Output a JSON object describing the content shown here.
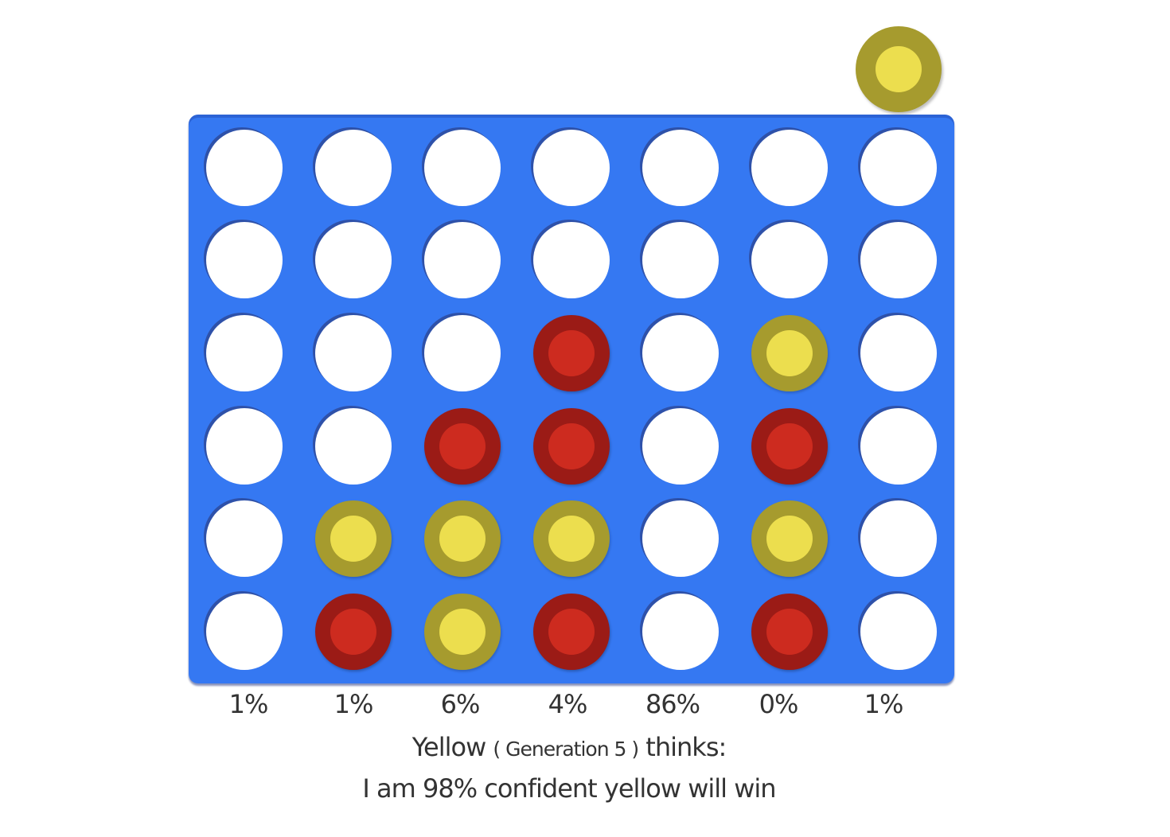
{
  "current_piece": "yellow",
  "board": [
    [
      "empty",
      "empty",
      "empty",
      "empty",
      "empty",
      "empty",
      "empty"
    ],
    [
      "empty",
      "empty",
      "empty",
      "empty",
      "empty",
      "empty",
      "empty"
    ],
    [
      "empty",
      "empty",
      "empty",
      "red",
      "empty",
      "yellow",
      "empty"
    ],
    [
      "empty",
      "empty",
      "red",
      "red",
      "empty",
      "red",
      "empty"
    ],
    [
      "empty",
      "yellow",
      "yellow",
      "yellow",
      "empty",
      "yellow",
      "empty"
    ],
    [
      "empty",
      "red",
      "yellow",
      "red",
      "empty",
      "red",
      "empty"
    ]
  ],
  "column_probabilities": [
    "1%",
    "1%",
    "6%",
    "4%",
    "86%",
    "0%",
    "1%"
  ],
  "status": {
    "player": "Yellow",
    "generation": "( Generation 5 )",
    "thinks": "thinks:",
    "confidence": "I am 98% confident yellow will win"
  },
  "colors": {
    "board": "#3578f2",
    "red_outer": "#9b1b16",
    "red_inner": "#cd2b1f",
    "yellow_outer": "#a69b2e",
    "yellow_inner": "#ecde4e",
    "empty": "#ffffff"
  }
}
